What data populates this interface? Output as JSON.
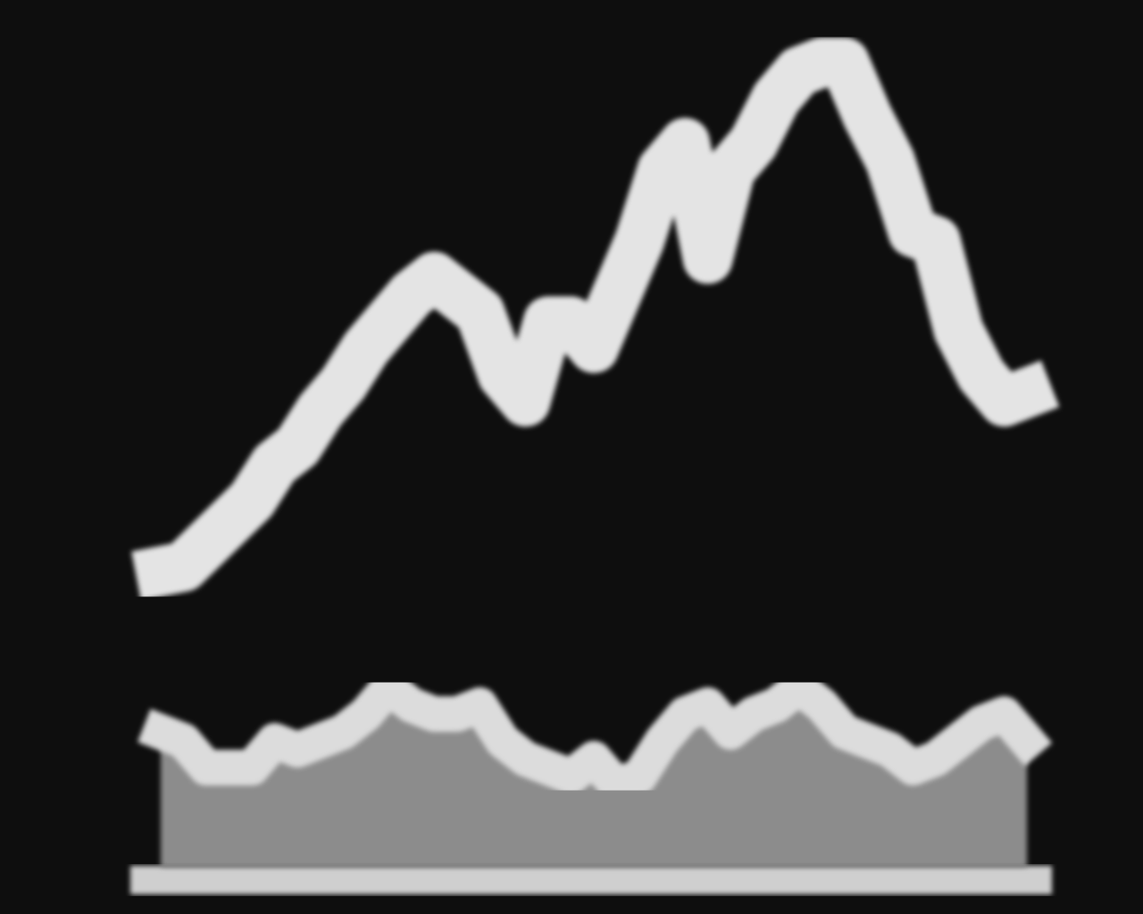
{
  "chart_data": {
    "type": "line",
    "categories": [
      null,
      null,
      null,
      null,
      null,
      null,
      null,
      null,
      null,
      null,
      null,
      null,
      null,
      null,
      null,
      null,
      null,
      null,
      null,
      null,
      null,
      null,
      null,
      null,
      null,
      null,
      null,
      null,
      null,
      null,
      null,
      null,
      null,
      null,
      null,
      null,
      null,
      null,
      null
    ],
    "series": [
      {
        "color": "#e4e4e4",
        "values": [
          384,
          389,
          414,
          439,
          464,
          504,
          524,
          564,
          594,
          634,
          664,
          694,
          714,
          694,
          674,
          604,
          574,
          664,
          664,
          634,
          694,
          754,
          834,
          864,
          734,
          834,
          864,
          914,
          944,
          954,
          954,
          894,
          844,
          764,
          754,
          654,
          604,
          574,
          584
        ]
      },
      {
        "color": "#8c8c8c",
        "values": [
          204,
          194,
          164,
          164,
          164,
          194,
          184,
          194,
          204,
          224,
          254,
          234,
          224,
          224,
          234,
          194,
          174,
          164,
          154,
          174,
          144,
          154,
          194,
          224,
          234,
          204,
          224,
          234,
          254,
          234,
          204,
          194,
          184,
          164,
          174,
          194,
          214,
          224,
          194
        ]
      }
    ],
    "ylim": [
      0,
      1024
    ]
  }
}
